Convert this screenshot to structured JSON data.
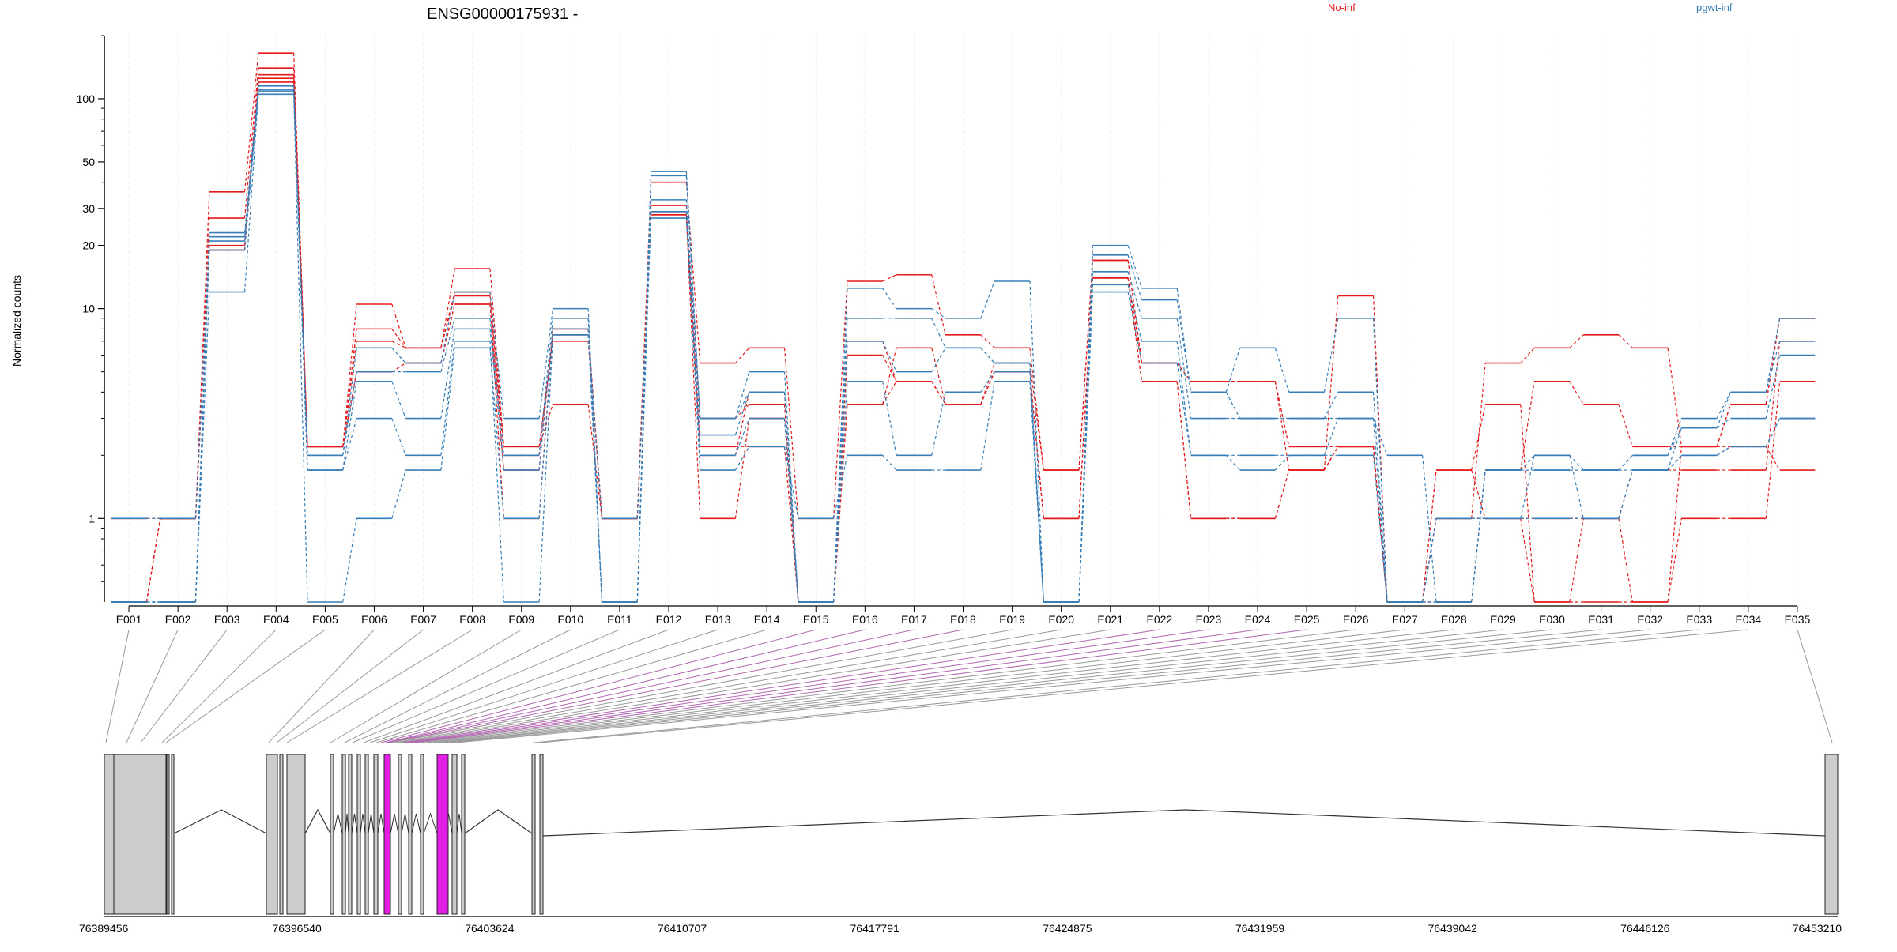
{
  "colors": {
    "no_inf": "#e41a1c",
    "pgwt_inf": "#377eb8",
    "highlight": "#e11ee1",
    "exon_fill": "#cccccc"
  },
  "chart_data": {
    "type": "line",
    "title": "ENSG00000175931 -",
    "ylabel": "Normalized counts",
    "y_scale": "log",
    "ylim": [
      0.4,
      200
    ],
    "y_ticks": [
      1,
      10,
      20,
      30,
      50,
      100
    ],
    "y_tick_labels": [
      "1",
      "10",
      "20",
      "30",
      "50",
      "100"
    ],
    "grid": "vertical",
    "legend_placement": "top-right",
    "categories": [
      "E001",
      "E002",
      "E003",
      "E004",
      "E005",
      "E006",
      "E007",
      "E008",
      "E009",
      "E010",
      "E011",
      "E012",
      "E013",
      "E014",
      "E015",
      "E016",
      "E017",
      "E018",
      "E019",
      "E020",
      "E021",
      "E022",
      "E023",
      "E024",
      "E025",
      "E026",
      "E027",
      "E028",
      "E029",
      "E030",
      "E031",
      "E032",
      "E033",
      "E034",
      "E035"
    ],
    "series": [
      {
        "name": "No-inf",
        "group": "No-inf",
        "values": [
          0.4,
          1,
          36,
          165,
          2.2,
          10.5,
          6.5,
          15.5,
          2.2,
          3.5,
          1,
          40,
          5.5,
          6.5,
          1,
          13.5,
          14.5,
          7.5,
          6.5,
          1.7,
          17,
          5.5,
          4.5,
          4.5,
          1.7,
          11.5,
          0.4,
          1,
          5.5,
          6.5,
          7.5,
          6.5,
          2.2,
          3.5,
          9
        ]
      },
      {
        "group": "No-inf",
        "values": [
          0.4,
          1,
          27,
          140,
          2.2,
          8,
          6.5,
          12,
          2.2,
          7,
          1,
          31,
          3,
          3.5,
          0.4,
          6,
          4.5,
          3.5,
          5.5,
          1.7,
          17,
          5.5,
          4.5,
          4.5,
          2.2,
          2.2,
          0.4,
          0.4,
          1.7,
          4.5,
          3.5,
          2.2,
          2.2,
          3.5,
          9
        ]
      },
      {
        "group": "No-inf",
        "values": [
          0.4,
          1,
          20,
          130,
          2.2,
          7,
          6.5,
          11.5,
          2,
          7.5,
          1,
          29,
          2,
          4,
          0.4,
          7,
          4.5,
          3.5,
          5,
          1,
          14,
          5.5,
          4.5,
          4.5,
          2.2,
          2.2,
          0.4,
          1,
          1,
          1,
          1,
          1.7,
          1.7,
          1.7,
          7
        ]
      },
      {
        "group": "No-inf",
        "values": [
          1,
          1,
          19,
          125,
          2.2,
          5,
          5.5,
          10.5,
          1.7,
          8,
          1,
          28,
          2.2,
          2.2,
          0.4,
          3.5,
          6.5,
          3.5,
          5,
          1,
          14,
          4.5,
          1,
          1,
          1.7,
          2.2,
          0.4,
          1.7,
          3.5,
          0.4,
          0.4,
          0.4,
          1,
          1,
          4.5
        ]
      },
      {
        "group": "No-inf",
        "values": [
          0.4,
          1,
          19,
          120,
          2.2,
          5,
          5.5,
          10.5,
          1,
          8,
          1,
          28,
          1,
          3,
          0.4,
          3.5,
          4.5,
          3.5,
          5,
          1,
          14,
          4.5,
          1,
          1,
          1.7,
          2.2,
          0.4,
          1.7,
          1,
          0.4,
          1,
          0.4,
          2.2,
          2.2,
          1.7
        ]
      },
      {
        "name": "pgwt-inf",
        "group": "pgwt-inf",
        "values": [
          0.4,
          0.4,
          23,
          115,
          2,
          6.5,
          5.5,
          12,
          3,
          10,
          0.4,
          45,
          3,
          5,
          0.4,
          12.5,
          10,
          9,
          13.5,
          0.4,
          20,
          12.5,
          4,
          6.5,
          4,
          9,
          0.4,
          0.4,
          1.7,
          1.7,
          1.7,
          2,
          2.7,
          4,
          9
        ]
      },
      {
        "group": "pgwt-inf",
        "values": [
          0.4,
          0.4,
          22,
          110,
          2,
          5,
          5,
          9,
          2,
          9,
          0.4,
          43,
          3,
          4,
          0.4,
          9,
          9,
          6.5,
          5.5,
          0.4,
          18,
          11,
          4,
          3,
          3,
          4,
          0.4,
          0.4,
          1.7,
          2,
          1.7,
          2,
          3,
          4,
          7
        ]
      },
      {
        "group": "pgwt-inf",
        "values": [
          1,
          1,
          21,
          108,
          1.7,
          4.5,
          3,
          8,
          1.7,
          8,
          0.4,
          33,
          2.5,
          4,
          0.4,
          7,
          5,
          6.5,
          5.5,
          0.4,
          15,
          9,
          3,
          3,
          3,
          3,
          2,
          0.4,
          1.7,
          1.7,
          1.7,
          1.7,
          2.7,
          3,
          6
        ]
      },
      {
        "group": "pgwt-inf",
        "values": [
          0.4,
          0.4,
          19,
          108,
          1.7,
          3,
          2,
          7,
          0.4,
          7.5,
          0.4,
          29,
          2,
          3,
          0.4,
          4.5,
          2,
          4,
          5,
          0.4,
          13,
          7,
          2,
          2,
          2,
          3,
          0.4,
          1,
          1,
          1,
          1,
          1.7,
          2,
          2.2,
          3
        ]
      },
      {
        "group": "pgwt-inf",
        "values": [
          0.4,
          0.4,
          12,
          105,
          0.4,
          1,
          1.7,
          6.5,
          1,
          7.5,
          1,
          27,
          1.7,
          2.2,
          1,
          2,
          1.7,
          1.7,
          4.5,
          0.4,
          12,
          5.5,
          2,
          1.7,
          2,
          2,
          0.4,
          1,
          1,
          2,
          1,
          1.7,
          2,
          2.2,
          3
        ]
      }
    ],
    "coordinate_ticks": [
      "76389456",
      "76396540",
      "76403624",
      "76410707",
      "76417791",
      "76424875",
      "76431959",
      "76439042",
      "76446126",
      "76453210"
    ]
  }
}
